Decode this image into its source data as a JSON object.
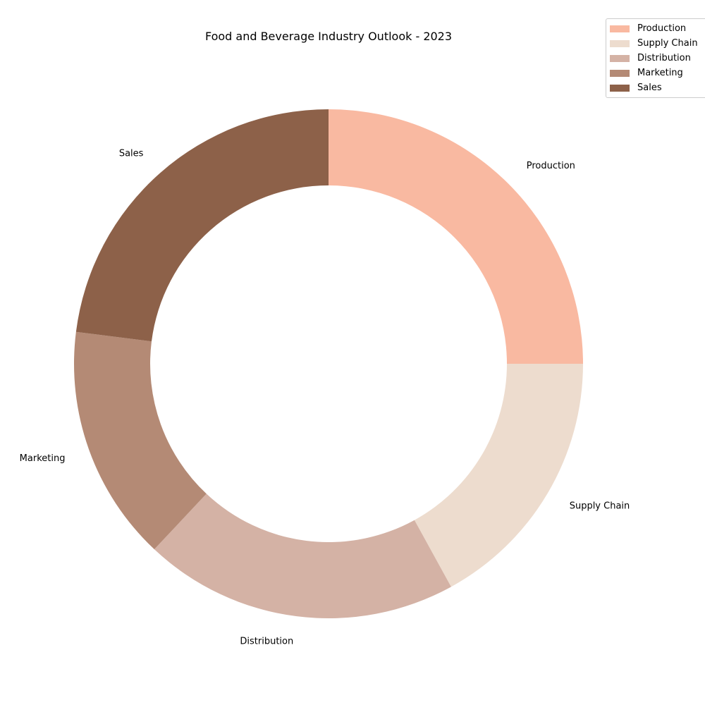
{
  "chart_data": {
    "type": "pie",
    "variant": "donut",
    "title": "Food and Beverage Industry Outlook - 2023",
    "categories": [
      "Production",
      "Supply Chain",
      "Distribution",
      "Marketing",
      "Sales"
    ],
    "values": [
      25,
      17,
      20,
      15,
      23
    ],
    "colors": [
      "#f9b9a1",
      "#eddcce",
      "#d4b2a5",
      "#b48a75",
      "#8d6149"
    ],
    "start_angle": "top",
    "direction": "clockwise",
    "legend": {
      "position": "top-right",
      "entries": [
        "Production",
        "Supply Chain",
        "Distribution",
        "Marketing",
        "Sales"
      ]
    }
  }
}
